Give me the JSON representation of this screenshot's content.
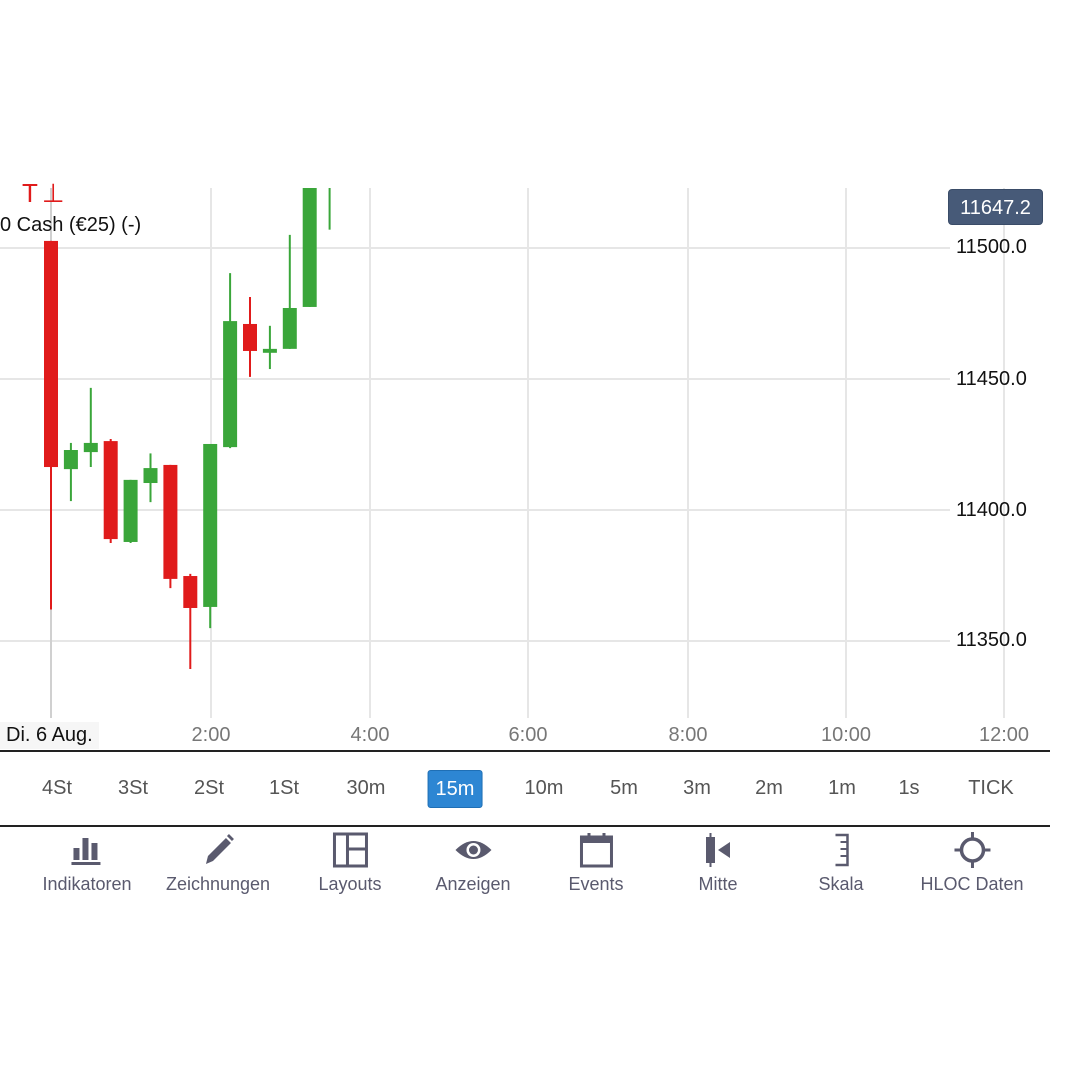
{
  "chart_data": {
    "type": "candlestick",
    "title": "",
    "legend": {
      "marker": "T⊥",
      "label": "0 Cash (€25) (-)"
    },
    "current_price": "11647.2",
    "y_ticks": [
      "11500.0",
      "11450.0",
      "11400.0",
      "11350.0"
    ],
    "y_tick_values": [
      11500,
      11450,
      11400,
      11350
    ],
    "x_date_label": "Di. 6 Aug.",
    "x_ticks": [
      "2:00",
      "4:00",
      "6:00",
      "8:00",
      "10:00",
      "12:00"
    ],
    "interval": "15m",
    "ylim": [
      11320,
      11525
    ],
    "grid": true,
    "candles": [
      {
        "i": 1,
        "open": 11502.7,
        "high": 11502.7,
        "low": 11362.0,
        "close": 11416.4,
        "dir": "down"
      },
      {
        "i": 2,
        "open": 11415.6,
        "high": 11425.6,
        "low": 11403.4,
        "close": 11422.9,
        "dir": "up"
      },
      {
        "i": 3,
        "open": 11422.1,
        "high": 11446.6,
        "low": 11416.4,
        "close": 11425.6,
        "dir": "up"
      },
      {
        "i": 4,
        "open": 11426.3,
        "high": 11427.1,
        "low": 11387.4,
        "close": 11388.9,
        "dir": "down"
      },
      {
        "i": 5,
        "open": 11387.8,
        "high": 11411.5,
        "low": 11387.4,
        "close": 11411.5,
        "dir": "up"
      },
      {
        "i": 6,
        "open": 11410.3,
        "high": 11421.6,
        "low": 11403.0,
        "close": 11416.0,
        "dir": "up"
      },
      {
        "i": 7,
        "open": 11417.2,
        "high": 11417.2,
        "low": 11370.2,
        "close": 11373.7,
        "dir": "down"
      },
      {
        "i": 8,
        "open": 11374.8,
        "high": 11375.6,
        "low": 11339.3,
        "close": 11362.6,
        "dir": "down"
      },
      {
        "i": 9,
        "open": 11363.0,
        "high": 11425.2,
        "low": 11354.9,
        "close": 11425.2,
        "dir": "up"
      },
      {
        "i": 10,
        "open": 11424.0,
        "high": 11490.4,
        "low": 11423.6,
        "close": 11472.1,
        "dir": "up"
      },
      {
        "i": 11,
        "open": 11471.0,
        "high": 11481.3,
        "low": 11450.8,
        "close": 11460.7,
        "dir": "down"
      },
      {
        "i": 12,
        "open": 11460.0,
        "high": 11470.3,
        "low": 11453.8,
        "close": 11461.5,
        "dir": "up"
      },
      {
        "i": 13,
        "open": 11461.5,
        "high": 11505.0,
        "low": 11461.5,
        "close": 11477.1,
        "dir": "up"
      },
      {
        "i": 14,
        "open": 11477.5,
        "high": 11525.0,
        "low": 11477.5,
        "close": 11525.0,
        "dir": "up"
      },
      {
        "i": 15,
        "open": 11507.0,
        "high": 11525.0,
        "low": 11507.0,
        "close": 11525.0,
        "dir": "up",
        "note": "wick only visible, clipped"
      }
    ],
    "colors": {
      "up": "#3aa63a",
      "down": "#e01b1b",
      "grid": "#e6e6e6"
    }
  },
  "timeframes": {
    "items": [
      "4St",
      "3St",
      "2St",
      "1St",
      "30m",
      "15m",
      "10m",
      "5m",
      "3m",
      "2m",
      "1m",
      "1s",
      "TICK"
    ],
    "active": "15m"
  },
  "toolbar": {
    "items": [
      {
        "label": "Indikatoren",
        "icon": "bar-chart-icon"
      },
      {
        "label": "Zeichnungen",
        "icon": "pencil-icon"
      },
      {
        "label": "Layouts",
        "icon": "layout-icon"
      },
      {
        "label": "Anzeigen",
        "icon": "eye-icon"
      },
      {
        "label": "Events",
        "icon": "calendar-icon"
      },
      {
        "label": "Mitte",
        "icon": "center-icon"
      },
      {
        "label": "Skala",
        "icon": "scale-icon"
      },
      {
        "label": "HLOC Daten",
        "icon": "crosshair-icon"
      }
    ]
  },
  "colors": {
    "accent": "#2d86d3",
    "price_tag": "#475a78",
    "icon": "#5a5a6e"
  }
}
